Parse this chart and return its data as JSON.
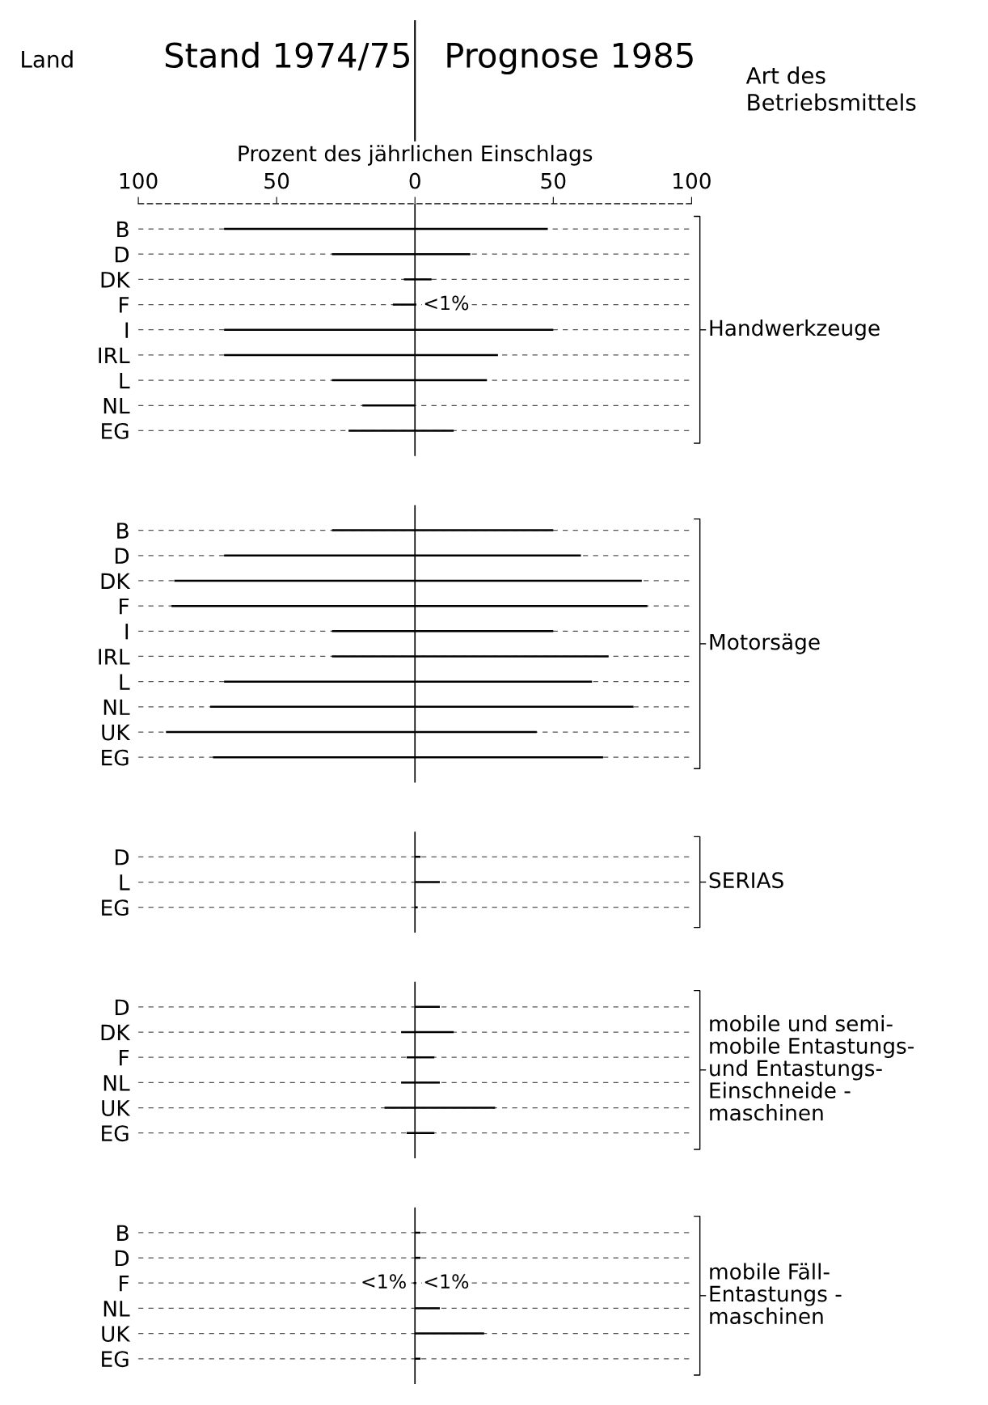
{
  "chart_data": [
    {
      "type": "bar",
      "orientation": "horizontal",
      "stacked": true,
      "xlabel": "Prozent des jährlichen Einschlags",
      "y2label": "Handwerkzeuge",
      "annotations": [
        "Land",
        "Art des Betriebsmittels",
        "Stand 1974/75",
        "Prognose 1985"
      ],
      "categories": [
        "B",
        "D",
        "DK",
        "F",
        "I",
        "IRL",
        "L",
        "NL",
        "EG"
      ],
      "series": [
        {
          "color": "#000000",
          "values": [
            -69,
            -30,
            -4,
            -8,
            -69,
            -69,
            -30,
            -19,
            -24
          ]
        },
        {
          "color": "#000000",
          "values": [
            48,
            20,
            6,
            0.5,
            50,
            30,
            26,
            0,
            14
          ],
          "value_labels": [
            null,
            null,
            null,
            "<1%",
            null,
            null,
            null,
            null,
            null
          ]
        }
      ],
      "xlim": [
        -100,
        100
      ],
      "xticks": [
        {
          "value": -100,
          "label": "100"
        },
        {
          "value": -50,
          "label": "50"
        },
        0,
        50,
        100
      ],
      "grid": "y",
      "ref_lines": [
        {
          "axis": "x",
          "value": 0
        }
      ]
    },
    {
      "type": "bar",
      "orientation": "horizontal",
      "stacked": true,
      "y2label": "Motorsäge",
      "tick_labels": "y",
      "categories": [
        "B",
        "D",
        "DK",
        "F",
        "I",
        "IRL",
        "L",
        "NL",
        "UK",
        "EG"
      ],
      "series": [
        {
          "color": "#000000",
          "values": [
            -30,
            -69,
            -87,
            -88,
            -30,
            -30,
            -69,
            -74,
            -90,
            -73
          ]
        },
        {
          "color": "#000000",
          "values": [
            50,
            60,
            82,
            84,
            50,
            70,
            64,
            79,
            44,
            68
          ]
        }
      ],
      "xlim": [
        -100,
        100
      ],
      "grid": "y",
      "ref_lines": [
        {
          "axis": "x",
          "value": 0
        }
      ]
    },
    {
      "type": "bar",
      "orientation": "horizontal",
      "stacked": true,
      "y2label": "SERIAS",
      "tick_labels": "y",
      "categories": [
        "D",
        "L",
        "EG"
      ],
      "series": [
        {
          "color": "#000000",
          "values": [
            null,
            null,
            null
          ]
        },
        {
          "color": "#000000",
          "values": [
            2,
            9,
            1
          ]
        }
      ],
      "xlim": [
        -100,
        100
      ],
      "grid": "y",
      "ref_lines": [
        {
          "axis": "x",
          "value": 0
        }
      ]
    },
    {
      "type": "bar",
      "orientation": "horizontal",
      "stacked": true,
      "y2label": "mobile und semi-\nmobile Entastungs-\nund Entastungs-\nEinschneide -\nmaschinen",
      "tick_labels": "y",
      "categories": [
        "D",
        "DK",
        "F",
        "NL",
        "UK",
        "EG"
      ],
      "series": [
        {
          "color": "#000000",
          "values": [
            null,
            -5,
            -3,
            -5,
            -11,
            -3
          ]
        },
        {
          "color": "#000000",
          "values": [
            9,
            14,
            7,
            9,
            29,
            7
          ]
        }
      ],
      "xlim": [
        -100,
        100
      ],
      "grid": "y",
      "ref_lines": [
        {
          "axis": "x",
          "value": 0
        }
      ]
    },
    {
      "type": "bar",
      "orientation": "horizontal",
      "stacked": true,
      "y2label": "mobile Fäll-\nEntastungs -\nmaschinen",
      "tick_labels": "y",
      "categories": [
        "B",
        "D",
        "F",
        "NL",
        "UK",
        "EG"
      ],
      "series": [
        {
          "color": "#000000",
          "values": [
            null,
            null,
            -0.5,
            null,
            null,
            null
          ],
          "value_labels": [
            null,
            null,
            "<1%",
            null,
            null,
            null
          ]
        },
        {
          "color": "#000000",
          "values": [
            2,
            2,
            0.5,
            9,
            25,
            2
          ],
          "value_labels": [
            null,
            null,
            "<1%",
            null,
            null,
            null
          ]
        }
      ],
      "xlim": [
        -100,
        100
      ],
      "grid": "y",
      "ref_lines": [
        {
          "axis": "x",
          "value": 0
        }
      ]
    }
  ]
}
